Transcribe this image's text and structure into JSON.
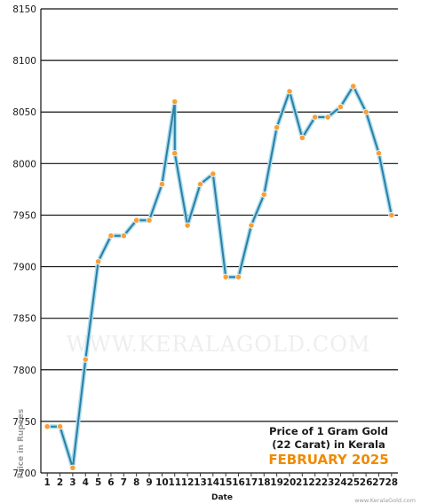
{
  "chart_data": {
    "type": "line",
    "xlabel": "Date",
    "ylabel": "Price in Rupees",
    "ylim": [
      7700,
      8150
    ],
    "yticks": [
      7700,
      7750,
      7800,
      7850,
      7900,
      7950,
      8000,
      8050,
      8100,
      8150
    ],
    "x_tick_labels": [
      "1",
      "2",
      "3",
      "4",
      "5",
      "6",
      "7",
      "8",
      "9",
      "10",
      "11",
      "12",
      "13",
      "14",
      "15",
      "16",
      "17",
      "18",
      "19",
      "20",
      "21",
      "22",
      "23",
      "24",
      "25",
      "26",
      "27",
      "28"
    ],
    "points": [
      {
        "x": 1,
        "y": 7745
      },
      {
        "x": 2,
        "y": 7745
      },
      {
        "x": 3,
        "y": 7705
      },
      {
        "x": 4,
        "y": 7810
      },
      {
        "x": 5,
        "y": 7905
      },
      {
        "x": 6,
        "y": 7930
      },
      {
        "x": 7,
        "y": 7930
      },
      {
        "x": 8,
        "y": 7945
      },
      {
        "x": 9,
        "y": 7945
      },
      {
        "x": 10,
        "y": 7980
      },
      {
        "x": 11,
        "y": 8060
      },
      {
        "x": 11,
        "y": 8010
      },
      {
        "x": 12,
        "y": 7940
      },
      {
        "x": 13,
        "y": 7980
      },
      {
        "x": 14,
        "y": 7990
      },
      {
        "x": 15,
        "y": 7890
      },
      {
        "x": 16,
        "y": 7890
      },
      {
        "x": 17,
        "y": 7940
      },
      {
        "x": 18,
        "y": 7970
      },
      {
        "x": 19,
        "y": 8035
      },
      {
        "x": 20,
        "y": 8070
      },
      {
        "x": 21,
        "y": 8025
      },
      {
        "x": 22,
        "y": 8045
      },
      {
        "x": 23,
        "y": 8045
      },
      {
        "x": 24,
        "y": 8055
      },
      {
        "x": 25,
        "y": 8075
      },
      {
        "x": 26,
        "y": 8050
      },
      {
        "x": 27,
        "y": 8010
      },
      {
        "x": 28,
        "y": 7950
      }
    ],
    "annotation": {
      "line1": "Price of 1 Gram Gold",
      "line2": "(22 Carat) in Kerala",
      "line3": "FEBRUARY 2025"
    },
    "watermark": "WWW.KERALAGOLD.COM",
    "credit": "www.KeralaGold.com",
    "grid": true,
    "colors": {
      "line": "#2b7ea6",
      "line_shadow": "#a9dcec",
      "marker": "#f5a03a",
      "gridline": "#111111",
      "annotation_month": "#f08a00"
    }
  }
}
